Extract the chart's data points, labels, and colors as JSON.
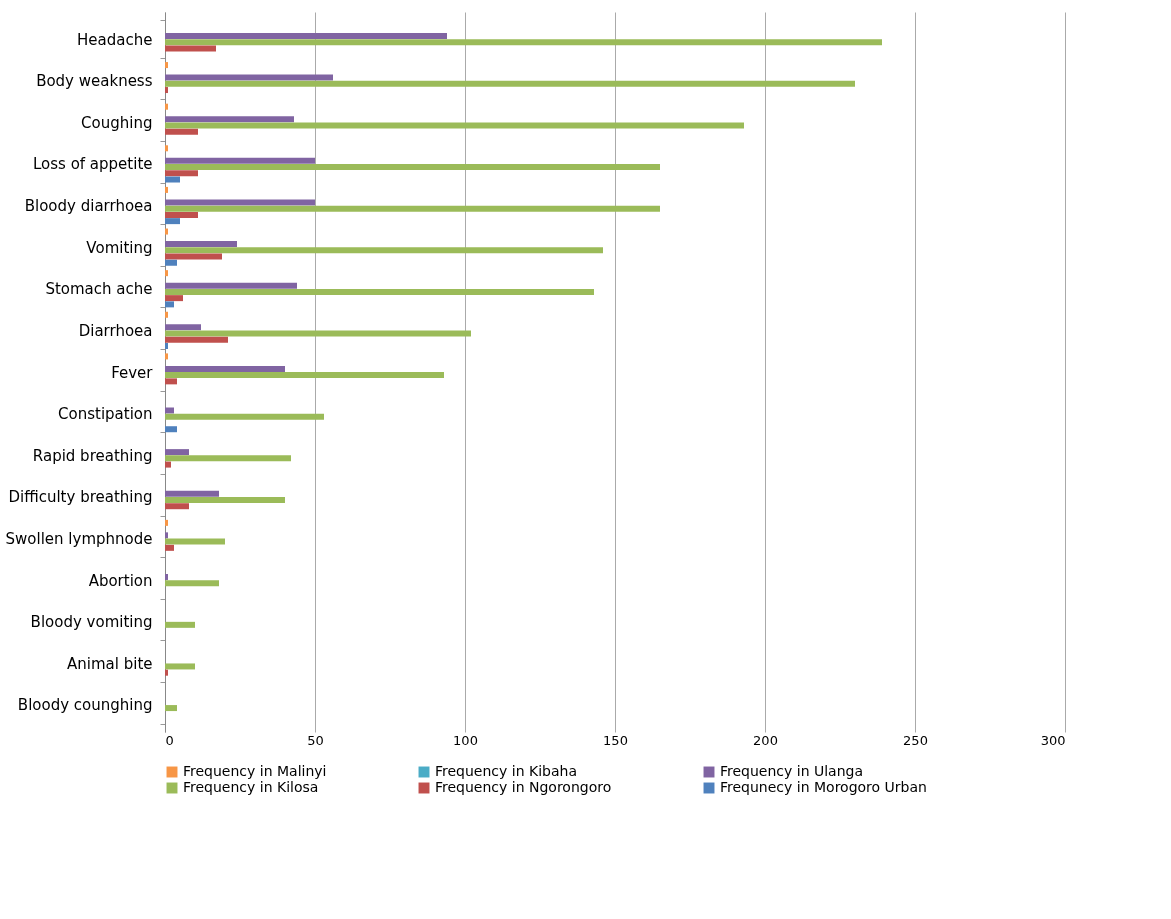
{
  "chart_data": {
    "type": "bar",
    "orientation": "horizontal",
    "categories": [
      "Headache",
      "Body weakness",
      "Coughing",
      "Loss of appetite",
      "Bloody diarrhoea",
      "Vomiting",
      "Stomach ache",
      "Diarrhoea",
      "Fever",
      "Constipation",
      "Rapid breathing",
      "Difficulty breathing",
      "Swollen lymphnode",
      "Abortion",
      "Bloody vomiting",
      "Animal bite",
      "Bloody counghing"
    ],
    "series": [
      {
        "name": "Frequency in Malinyi",
        "color": "#f79646",
        "values": [
          0,
          1,
          1,
          1,
          1,
          1,
          1,
          1,
          1,
          0,
          0,
          0,
          1,
          0,
          0,
          0,
          0
        ]
      },
      {
        "name": "Frequency in Kibaha",
        "color": "#4bacc6",
        "values": [
          0,
          0,
          0,
          0,
          0,
          0,
          0,
          0,
          0,
          0,
          0,
          0,
          0,
          0,
          0,
          0,
          0
        ]
      },
      {
        "name": "Frequency in Ulanga",
        "color": "#8064a2",
        "values": [
          94,
          56,
          43,
          50,
          50,
          24,
          44,
          12,
          40,
          3,
          8,
          18,
          1,
          1,
          0,
          0,
          0
        ]
      },
      {
        "name": "Frequency in Kilosa",
        "color": "#9bbb59",
        "values": [
          239,
          230,
          193,
          165,
          165,
          146,
          143,
          102,
          93,
          53,
          42,
          40,
          20,
          18,
          10,
          10,
          4
        ]
      },
      {
        "name": "Frequency in Ngorongoro",
        "color": "#c0504d",
        "values": [
          17,
          1,
          11,
          11,
          11,
          19,
          6,
          21,
          4,
          0,
          2,
          8,
          3,
          0,
          0,
          1,
          0
        ]
      },
      {
        "name": "Frequnecy in Morogoro Urban",
        "color": "#4f81bd",
        "values": [
          0,
          0,
          0,
          5,
          5,
          4,
          3,
          1,
          0,
          4,
          0,
          0,
          0,
          0,
          0,
          0,
          0
        ]
      }
    ],
    "xlim": [
      0,
      300
    ],
    "xticks": [
      0,
      50,
      100,
      150,
      200,
      250,
      300
    ],
    "grid": "x",
    "legend": "bottom"
  }
}
